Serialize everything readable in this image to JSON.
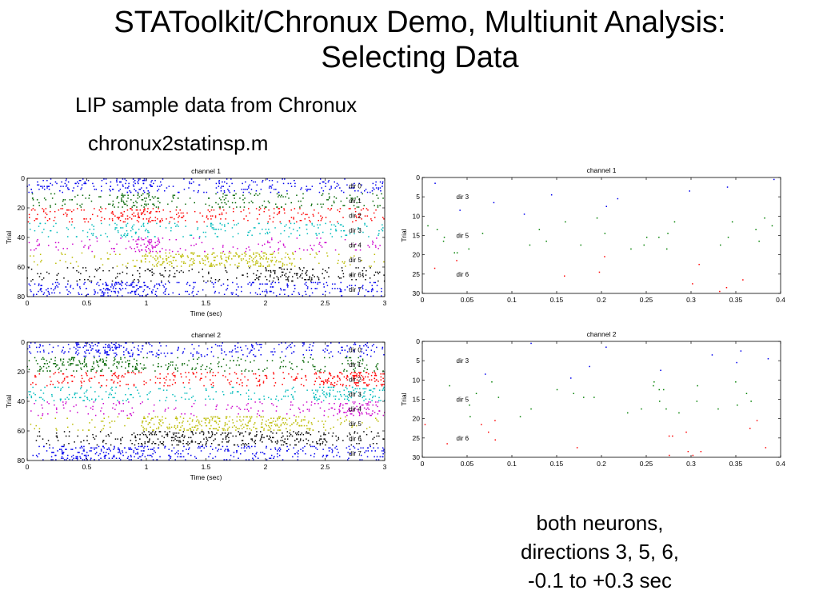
{
  "slide": {
    "title_lines": [
      "STAToolkit/Chronux Demo, Multiunit Analysis:",
      "Selecting Data"
    ],
    "subtitle_1": "LIP sample data from Chronux",
    "subtitle_2": "chronux2statinsp.m",
    "note_lines": [
      "both neurons,",
      "directions 3, 5, 6,",
      "-0.1 to +0.3 sec"
    ]
  },
  "chart_data": [
    {
      "type": "scatter",
      "title": "channel 1",
      "xlabel": "Time (sec)",
      "ylabel": "Trial",
      "xlim": [
        0,
        3
      ],
      "ylim": [
        0,
        80
      ],
      "y_inverted": true,
      "xticks": [
        "0",
        "0.5",
        "1",
        "1.5",
        "2",
        "2.5",
        "3"
      ],
      "yticks": [
        "0",
        "20",
        "40",
        "60",
        "80"
      ],
      "grid": false,
      "groups": [
        {
          "label": "dir 0",
          "trials": [
            0,
            10
          ],
          "color": "#0000ee",
          "rate": 90,
          "burst": {
            "from": 0.75,
            "to": 1.05,
            "rate": 140
          }
        },
        {
          "label": "dir 1",
          "trials": [
            10,
            20
          ],
          "color": "#006400",
          "rate": 80,
          "burst": {
            "from": 0.75,
            "to": 1.1,
            "rate": 120
          }
        },
        {
          "label": "dir 2",
          "trials": [
            20,
            30
          ],
          "color": "#ff0000",
          "rate": 85,
          "burst": {
            "from": 0.8,
            "to": 1.05,
            "rate": 120
          }
        },
        {
          "label": "dir 3",
          "trials": [
            30,
            40
          ],
          "color": "#00bbbb",
          "rate": 70,
          "burst": {
            "from": 0.8,
            "to": 1.05,
            "rate": 100
          }
        },
        {
          "label": "dir 4",
          "trials": [
            40,
            50
          ],
          "color": "#cc00cc",
          "rate": 45,
          "burst": {
            "from": 0.9,
            "to": 1.15,
            "rate": 170
          }
        },
        {
          "label": "dir 5",
          "trials": [
            50,
            60
          ],
          "color": "#bbbb00",
          "rate": 40,
          "burst": {
            "from": 0.95,
            "to": 2.25,
            "rate": 170
          }
        },
        {
          "label": "dir 6",
          "trials": [
            60,
            70
          ],
          "color": "#000000",
          "rate": 55,
          "burst": {
            "from": 1.9,
            "to": 2.4,
            "rate": 90
          }
        },
        {
          "label": "dir 7",
          "trials": [
            70,
            80
          ],
          "color": "#0000ee",
          "rate": 95,
          "burst": {
            "from": 0.6,
            "to": 1.1,
            "rate": 140
          }
        }
      ]
    },
    {
      "type": "scatter",
      "title": "channel 1",
      "xlabel": "Time (sec)",
      "ylabel": "Trial",
      "xlim": [
        0,
        0.4
      ],
      "ylim": [
        0,
        30
      ],
      "y_inverted": true,
      "xticks": [
        "0",
        "0.05",
        "0.1",
        "0.15",
        "0.2",
        "0.25",
        "0.3",
        "0.35",
        "0.4"
      ],
      "yticks": [
        "0",
        "5",
        "10",
        "15",
        "20",
        "25",
        "30"
      ],
      "grid": false,
      "groups": [
        {
          "label": "dir 3",
          "trials": [
            0,
            10
          ],
          "color": "#0000ee",
          "rate": 14
        },
        {
          "label": "dir 5",
          "trials": [
            10,
            20
          ],
          "color": "#008000",
          "rate": 65
        },
        {
          "label": "dir 6",
          "trials": [
            20,
            30
          ],
          "color": "#ff0000",
          "rate": 12
        }
      ]
    },
    {
      "type": "scatter",
      "title": "channel 2",
      "xlabel": "Time (sec)",
      "ylabel": "Trial",
      "xlim": [
        0,
        3
      ],
      "ylim": [
        0,
        80
      ],
      "y_inverted": true,
      "xticks": [
        "0",
        "0.5",
        "1",
        "1.5",
        "2",
        "2.5",
        "3"
      ],
      "yticks": [
        "0",
        "20",
        "40",
        "60",
        "80"
      ],
      "grid": false,
      "groups": [
        {
          "label": "dir 0",
          "trials": [
            0,
            10
          ],
          "color": "#0000ee",
          "rate": 100,
          "burst": {
            "from": 0.4,
            "to": 1.0,
            "rate": 130
          }
        },
        {
          "label": "dir 1",
          "trials": [
            10,
            20
          ],
          "color": "#006400",
          "rate": 75,
          "burst": {
            "from": 0.1,
            "to": 1.0,
            "rate": 90
          }
        },
        {
          "label": "dir 2",
          "trials": [
            20,
            30
          ],
          "color": "#ff0000",
          "rate": 80,
          "burst": {
            "from": 2.4,
            "to": 3.0,
            "rate": 120
          }
        },
        {
          "label": "dir 3",
          "trials": [
            30,
            40
          ],
          "color": "#00bbbb",
          "rate": 75,
          "burst": {
            "from": 2.4,
            "to": 3.0,
            "rate": 110
          }
        },
        {
          "label": "dir 4",
          "trials": [
            40,
            50
          ],
          "color": "#cc00cc",
          "rate": 45,
          "burst": {
            "from": 2.6,
            "to": 3.0,
            "rate": 120
          }
        },
        {
          "label": "dir 5",
          "trials": [
            50,
            60
          ],
          "color": "#bbbb00",
          "rate": 40,
          "burst": {
            "from": 0.95,
            "to": 2.4,
            "rate": 170
          }
        },
        {
          "label": "dir 6",
          "trials": [
            60,
            70
          ],
          "color": "#000000",
          "rate": 70,
          "burst": {
            "from": 0.9,
            "to": 2.5,
            "rate": 110
          }
        },
        {
          "label": "dir 7",
          "trials": [
            70,
            80
          ],
          "color": "#0000ee",
          "rate": 110,
          "burst": {
            "from": 0.3,
            "to": 1.1,
            "rate": 130
          }
        }
      ]
    },
    {
      "type": "scatter",
      "title": "channel 2",
      "xlabel": "Time (sec)",
      "ylabel": "Trial",
      "xlim": [
        0,
        0.4
      ],
      "ylim": [
        0,
        30
      ],
      "y_inverted": true,
      "xticks": [
        "0",
        "0.05",
        "0.1",
        "0.15",
        "0.2",
        "0.25",
        "0.3",
        "0.35",
        "0.4"
      ],
      "yticks": [
        "0",
        "5",
        "10",
        "15",
        "20",
        "25",
        "30"
      ],
      "grid": false,
      "groups": [
        {
          "label": "dir 3",
          "trials": [
            0,
            10
          ],
          "color": "#0000ee",
          "rate": 18
        },
        {
          "label": "dir 5",
          "trials": [
            10,
            20
          ],
          "color": "#008000",
          "rate": 70
        },
        {
          "label": "dir 6",
          "trials": [
            20,
            30
          ],
          "color": "#ff0000",
          "rate": 40
        }
      ]
    }
  ]
}
